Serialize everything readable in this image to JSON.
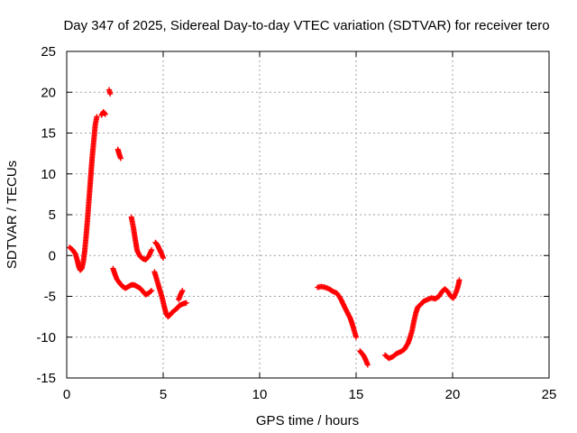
{
  "chart_data": {
    "type": "scatter",
    "title": "Day 347 of 2025, Sidereal Day-to-day VTEC variation (SDTVAR) for receiver tero",
    "xlabel": "GPS time / hours",
    "ylabel": "SDTVAR / TECUs",
    "xlim": [
      0,
      25
    ],
    "ylim": [
      -15,
      25
    ],
    "x_ticks": [
      0,
      5,
      10,
      15,
      20,
      25
    ],
    "y_ticks": [
      -15,
      -10,
      -5,
      0,
      5,
      10,
      15,
      20,
      25
    ],
    "grid": true,
    "legend": "none",
    "marker": "+",
    "series": [
      {
        "name": "SDTVAR",
        "color": "#ff0000",
        "segments": [
          {
            "x": [
              0.15,
              0.3,
              0.45,
              0.55,
              0.62,
              0.7,
              0.78,
              0.86,
              0.93,
              1.0,
              1.08,
              1.16,
              1.24,
              1.32,
              1.4,
              1.48,
              1.56
            ],
            "y": [
              1.0,
              0.7,
              0.2,
              -0.6,
              -1.3,
              -1.8,
              -1.6,
              -0.8,
              0.5,
              2.2,
              4.5,
              7.0,
              9.5,
              12.0,
              14.0,
              16.0,
              17.0
            ]
          },
          {
            "x": [
              1.8,
              1.9,
              2.0
            ],
            "y": [
              17.2,
              17.6,
              17.3
            ]
          },
          {
            "x": [
              2.2,
              2.25
            ],
            "y": [
              20.3,
              19.8
            ]
          },
          {
            "x": [
              2.4,
              2.5,
              2.6,
              2.75,
              2.9,
              3.05,
              3.2,
              3.35,
              3.5,
              3.65,
              3.8,
              3.95,
              4.1,
              4.25,
              4.4
            ],
            "y": [
              -1.6,
              -2.3,
              -2.9,
              -3.4,
              -3.8,
              -4.0,
              -3.8,
              -3.6,
              -3.6,
              -3.8,
              -4.0,
              -4.4,
              -4.8,
              -4.6,
              -4.3
            ]
          },
          {
            "x": [
              2.65,
              2.7,
              2.75,
              2.8
            ],
            "y": [
              13.0,
              12.6,
              12.2,
              11.9
            ]
          },
          {
            "x": [
              3.35,
              3.45,
              3.55,
              3.65,
              3.8,
              3.95,
              4.1,
              4.25,
              4.4
            ],
            "y": [
              4.7,
              3.5,
              2.0,
              0.6,
              -0.1,
              -0.4,
              -0.5,
              -0.1,
              0.7
            ]
          },
          {
            "x": [
              4.6,
              4.7,
              4.8,
              4.9,
              5.0
            ],
            "y": [
              1.6,
              1.3,
              0.8,
              0.3,
              -0.3
            ]
          },
          {
            "x": [
              4.55,
              4.65,
              4.75,
              4.85,
              4.95,
              5.05,
              5.15,
              5.25,
              5.35,
              5.45,
              5.55,
              5.65,
              5.75,
              5.85,
              5.95,
              6.05,
              6.2
            ],
            "y": [
              -2.0,
              -2.8,
              -3.6,
              -4.4,
              -5.2,
              -6.2,
              -7.1,
              -7.5,
              -7.3,
              -7.0,
              -6.8,
              -6.6,
              -6.4,
              -6.1,
              -6.0,
              -5.9,
              -5.8
            ]
          },
          {
            "x": [
              5.8,
              5.9,
              6.0
            ],
            "y": [
              -5.4,
              -4.8,
              -4.3
            ]
          },
          {
            "x": [
              13.0,
              13.2,
              13.4,
              13.6,
              13.8,
              14.0,
              14.2,
              14.4,
              14.55,
              14.7,
              14.8,
              14.9,
              15.0
            ],
            "y": [
              -3.9,
              -3.8,
              -3.9,
              -4.1,
              -4.4,
              -4.6,
              -5.3,
              -6.3,
              -7.0,
              -7.7,
              -8.4,
              -9.2,
              -10.0
            ]
          },
          {
            "x": [
              15.2,
              15.3,
              15.4,
              15.5,
              15.6
            ],
            "y": [
              -11.7,
              -12.0,
              -12.3,
              -12.8,
              -13.4
            ]
          },
          {
            "x": [
              16.5,
              16.7,
              16.9,
              17.1,
              17.3,
              17.5,
              17.7,
              17.8,
              17.9,
              18.0,
              18.1,
              18.2,
              18.35,
              18.5,
              18.7,
              18.9,
              19.1,
              19.3,
              19.45,
              19.6,
              19.75,
              19.9,
              20.05,
              20.2,
              20.3,
              20.35
            ],
            "y": [
              -12.2,
              -12.6,
              -12.4,
              -12.0,
              -11.8,
              -11.5,
              -10.7,
              -10.0,
              -9.2,
              -8.0,
              -7.0,
              -6.3,
              -6.0,
              -5.6,
              -5.4,
              -5.2,
              -5.3,
              -5.0,
              -4.4,
              -4.1,
              -4.4,
              -5.0,
              -5.2,
              -4.4,
              -3.6,
              -3.0
            ]
          }
        ]
      }
    ]
  }
}
